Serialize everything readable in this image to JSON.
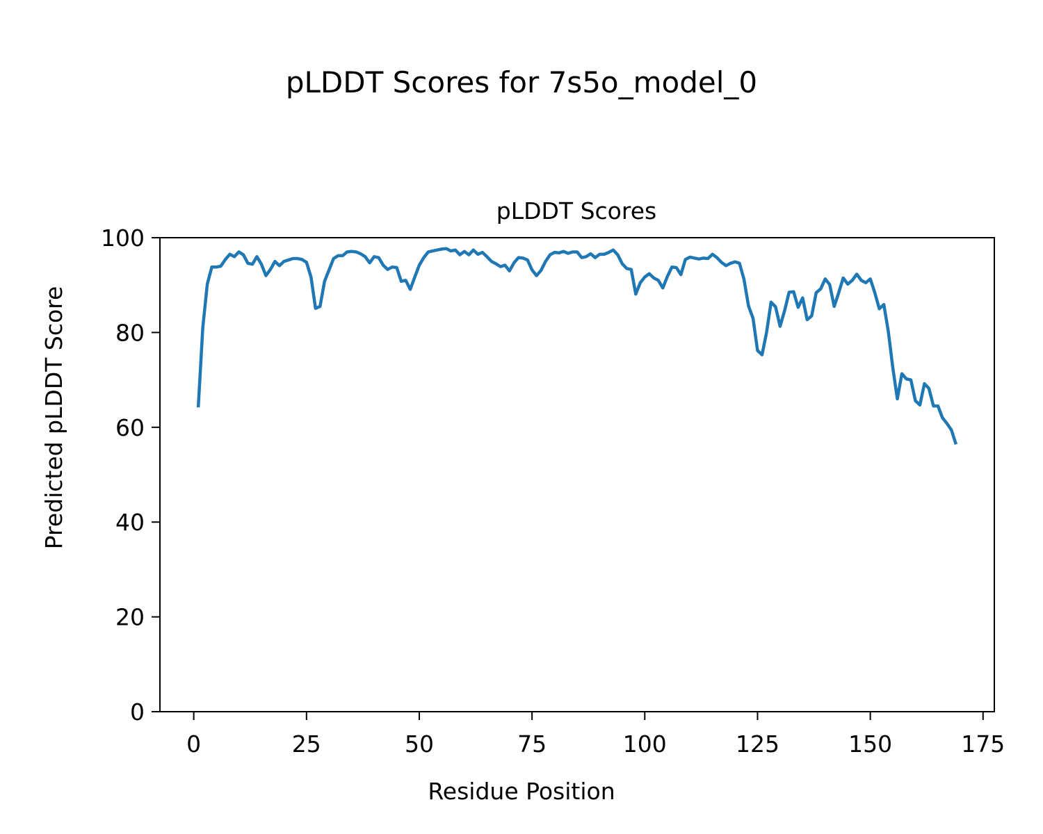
{
  "figure": {
    "suptitle": "pLDDT Scores for 7s5o_model_0"
  },
  "chart_data": {
    "type": "line",
    "title": "pLDDT Scores",
    "xlabel": "Residue Position",
    "ylabel": "Predicted pLDDT Score",
    "xlim": [
      -7.5,
      177.5
    ],
    "ylim": [
      0,
      100
    ],
    "xticks": [
      0,
      25,
      50,
      75,
      100,
      125,
      150,
      175
    ],
    "yticks": [
      0,
      20,
      40,
      60,
      80,
      100
    ],
    "grid": false,
    "line_color": "#1f77b4",
    "x_start": 1,
    "values": [
      64.2,
      81.0,
      90.2,
      93.8,
      93.8,
      94.0,
      95.4,
      96.5,
      96.0,
      97.0,
      96.4,
      94.6,
      94.4,
      96.0,
      94.4,
      92.0,
      93.3,
      95.0,
      94.1,
      95.0,
      95.3,
      95.6,
      95.6,
      95.4,
      94.8,
      91.7,
      85.1,
      85.5,
      90.8,
      93.2,
      95.6,
      96.2,
      96.2,
      97.0,
      97.1,
      97.0,
      96.6,
      96.0,
      94.7,
      96.0,
      95.8,
      94.2,
      93.3,
      93.8,
      93.7,
      90.8,
      91.0,
      89.1,
      91.7,
      94.2,
      95.8,
      97.0,
      97.2,
      97.4,
      97.6,
      97.7,
      97.2,
      97.4,
      96.4,
      97.1,
      96.4,
      97.4,
      96.5,
      96.9,
      96.0,
      95.0,
      94.5,
      93.9,
      94.2,
      93.0,
      94.7,
      95.8,
      95.7,
      95.3,
      93.2,
      92.0,
      93.1,
      95.0,
      96.4,
      96.9,
      96.8,
      97.1,
      96.7,
      97.0,
      97.0,
      95.8,
      96.0,
      96.6,
      95.8,
      96.5,
      96.5,
      96.9,
      97.4,
      96.4,
      94.5,
      93.5,
      93.3,
      88.1,
      90.5,
      91.7,
      92.4,
      91.5,
      91.0,
      89.4,
      91.8,
      93.8,
      93.7,
      92.2,
      95.4,
      95.9,
      95.7,
      95.5,
      95.7,
      95.6,
      96.5,
      95.8,
      94.8,
      94.1,
      94.6,
      94.9,
      94.6,
      91.2,
      85.6,
      83.0,
      76.2,
      75.3,
      80.0,
      86.4,
      85.4,
      81.3,
      84.6,
      88.5,
      88.6,
      85.3,
      87.3,
      82.7,
      83.5,
      88.4,
      89.2,
      91.3,
      90.1,
      85.5,
      88.4,
      91.5,
      90.2,
      91.0,
      92.3,
      91.0,
      90.5,
      91.3,
      88.4,
      85.0,
      85.9,
      80.2,
      72.5,
      66.0,
      71.3,
      70.2,
      70.0,
      65.6,
      64.7,
      69.2,
      68.2,
      64.5,
      64.5,
      62.0,
      60.8,
      59.4,
      56.4
    ]
  }
}
